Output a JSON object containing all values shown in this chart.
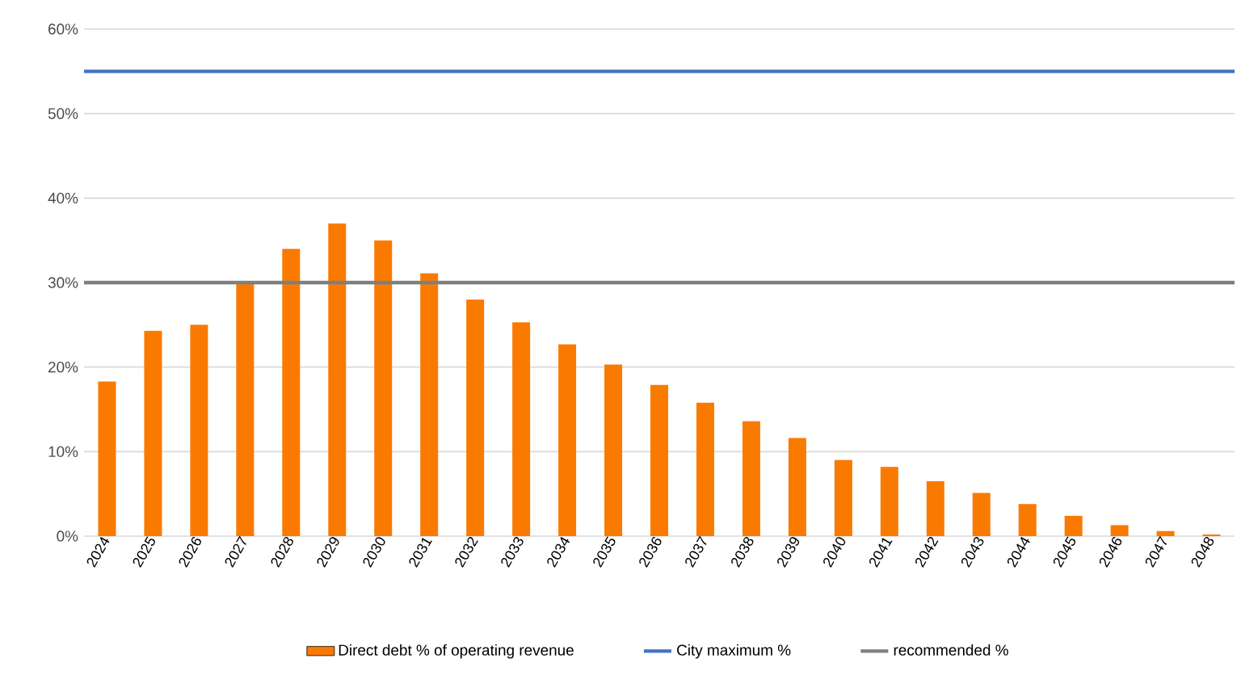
{
  "chart_data": {
    "type": "bar",
    "categories": [
      "2024",
      "2025",
      "2026",
      "2027",
      "2028",
      "2029",
      "2030",
      "2031",
      "2032",
      "2033",
      "2034",
      "2035",
      "2036",
      "2037",
      "2038",
      "2039",
      "2040",
      "2041",
      "2042",
      "2043",
      "2044",
      "2045",
      "2046",
      "2047",
      "2048"
    ],
    "series": [
      {
        "name": "Direct debt % of operating revenue",
        "color": "#fa7a00",
        "values": [
          18.3,
          24.3,
          25,
          30,
          34,
          37,
          35,
          31.1,
          28,
          25.3,
          22.7,
          20.3,
          17.9,
          15.8,
          13.6,
          11.6,
          9,
          8.2,
          6.5,
          5.1,
          3.8,
          2.4,
          1.3,
          0.6,
          0.2
        ]
      }
    ],
    "ylim": [
      0,
      60
    ],
    "yticks": [
      {
        "value": 0,
        "label": "0%"
      },
      {
        "value": 10,
        "label": "10%"
      },
      {
        "value": 20,
        "label": "20%"
      },
      {
        "value": 30,
        "label": "30%"
      },
      {
        "value": 40,
        "label": "40%"
      },
      {
        "value": 50,
        "label": "50%"
      },
      {
        "value": 60,
        "label": "60%"
      }
    ],
    "ref_lines": [
      {
        "axis": "y",
        "value": 55,
        "label": "City maximum %",
        "color": "#4472c4"
      },
      {
        "axis": "y",
        "value": 30,
        "label": "recommended %",
        "color": "#7f7f7f"
      }
    ],
    "grid": "y",
    "legend": "bottom"
  }
}
